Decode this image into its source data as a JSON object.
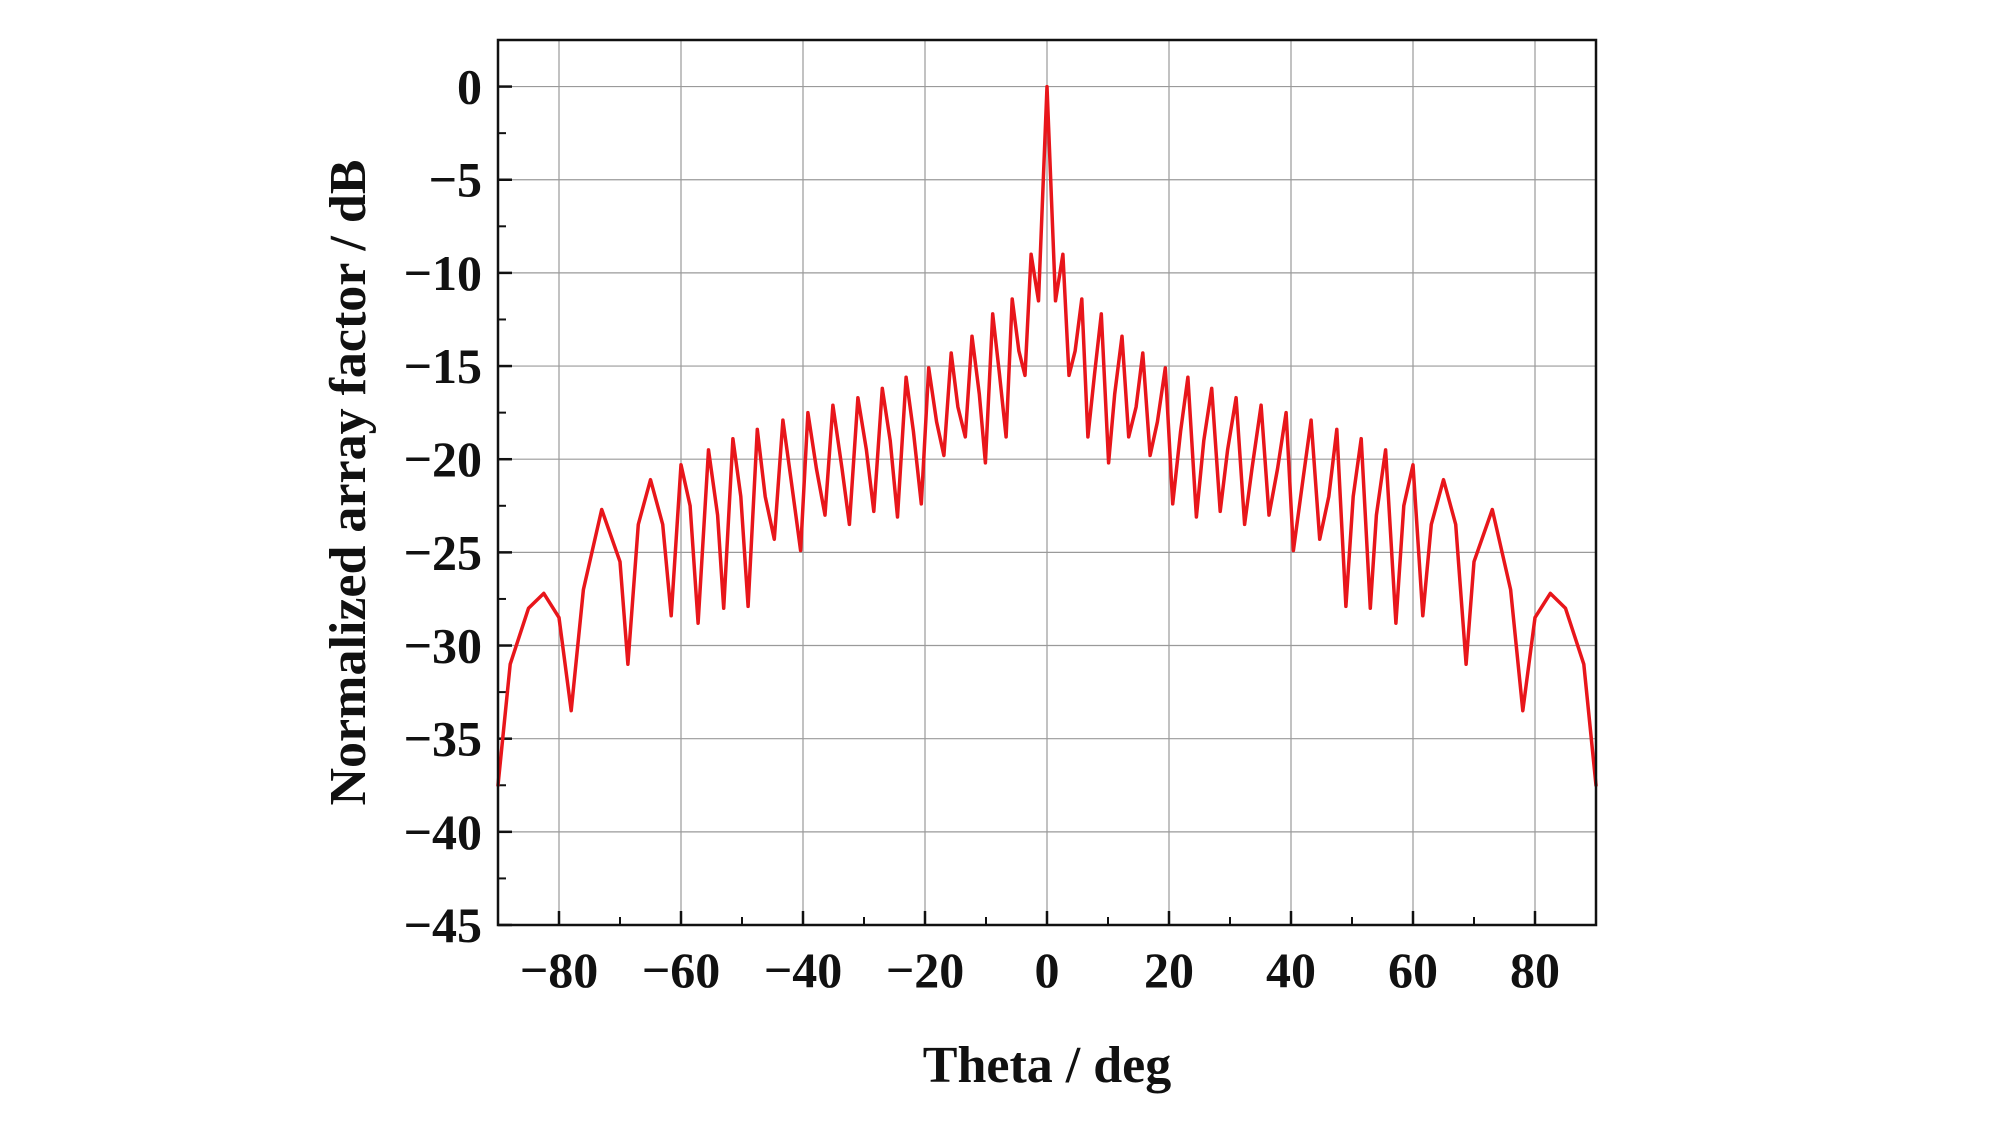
{
  "chart_data": {
    "type": "line",
    "title": "",
    "xlabel": "Theta / deg",
    "ylabel": "Normalized array factor / dB",
    "xlim": [
      -90,
      90
    ],
    "ylim": [
      -45,
      2.5
    ],
    "x_ticks": [
      -80,
      -60,
      -40,
      -20,
      0,
      20,
      40,
      60,
      80
    ],
    "x_tick_labels": [
      "−80",
      "−60",
      "−40",
      "−20",
      "0",
      "20",
      "40",
      "60",
      "80"
    ],
    "y_ticks": [
      0,
      -5,
      -10,
      -15,
      -20,
      -25,
      -30,
      -35,
      -40,
      -45
    ],
    "y_tick_labels": [
      "0",
      "−5",
      "−10",
      "−15",
      "−20",
      "−25",
      "−30",
      "−35",
      "−40",
      "−45"
    ],
    "grid": true,
    "legend": "none",
    "line_color": "#e8161b",
    "series": [
      {
        "x": [
          -90,
          -88,
          -85,
          -82.5,
          -80,
          -78,
          -76,
          -73,
          -70,
          -68.7,
          -67,
          -65,
          -63,
          -61.6,
          -60,
          -58.5,
          -57.2,
          -55.5,
          -54,
          -53,
          -51.5,
          -50.2,
          -49,
          -47.5,
          -46.2,
          -44.7,
          -43.3,
          -42,
          -40.4,
          -39.2,
          -37.8,
          -36.4,
          -35.1,
          -33.6,
          -32.4,
          -31,
          -29.6,
          -28.4,
          -27,
          -25.7,
          -24.5,
          -23.1,
          -21.9,
          -20.6,
          -19.4,
          -18.1,
          -16.9,
          -15.7,
          -14.6,
          -13.4,
          -12.3,
          -11.1,
          -10.1,
          -8.9,
          -7.8,
          -6.7,
          -5.7,
          -4.6,
          -3.6,
          -2.6,
          -1.4,
          0,
          1.4,
          2.6,
          3.6,
          4.6,
          5.7,
          6.7,
          7.8,
          8.9,
          10.1,
          11.1,
          12.3,
          13.4,
          14.6,
          15.7,
          16.9,
          18.1,
          19.4,
          20.6,
          21.9,
          23.1,
          24.5,
          25.7,
          27,
          28.4,
          29.6,
          31,
          32.4,
          33.6,
          35.1,
          36.4,
          37.8,
          39.2,
          40.4,
          42,
          43.3,
          44.7,
          46.2,
          47.5,
          49,
          50.2,
          51.5,
          53,
          54,
          55.5,
          57.2,
          58.5,
          60,
          61.6,
          63,
          65,
          67,
          68.7,
          70,
          73,
          76,
          78,
          80,
          82.5,
          85,
          88,
          90
        ],
        "y": [
          -37.5,
          -31,
          -28,
          -27.2,
          -28.5,
          -33.5,
          -27,
          -22.7,
          -25.5,
          -31,
          -23.5,
          -21.1,
          -23.5,
          -28.4,
          -20.3,
          -22.5,
          -28.8,
          -19.5,
          -23,
          -28,
          -18.9,
          -22,
          -27.9,
          -18.4,
          -22,
          -24.3,
          -17.9,
          -21,
          -24.9,
          -17.5,
          -20.5,
          -23,
          -17.1,
          -20.5,
          -23.5,
          -16.7,
          -19.5,
          -22.8,
          -16.2,
          -19,
          -23.1,
          -15.6,
          -18.5,
          -22.4,
          -15.1,
          -18,
          -19.8,
          -14.3,
          -17.2,
          -18.8,
          -13.4,
          -16.5,
          -20.2,
          -12.2,
          -15.4,
          -18.8,
          -11.4,
          -14.2,
          -15.5,
          -9,
          -11.5,
          0,
          -11.5,
          -9,
          -15.5,
          -14.2,
          -11.4,
          -18.8,
          -15.4,
          -12.2,
          -20.2,
          -16.5,
          -13.4,
          -18.8,
          -17.2,
          -14.3,
          -19.8,
          -18,
          -15.1,
          -22.4,
          -18.5,
          -15.6,
          -23.1,
          -19,
          -16.2,
          -22.8,
          -19.5,
          -16.7,
          -23.5,
          -20.5,
          -17.1,
          -23,
          -20.5,
          -17.5,
          -24.9,
          -21,
          -17.9,
          -24.3,
          -22,
          -18.4,
          -27.9,
          -22,
          -18.9,
          -28,
          -23,
          -19.5,
          -28.8,
          -22.5,
          -20.3,
          -28.4,
          -23.5,
          -21.1,
          -23.5,
          -31,
          -25.5,
          -22.7,
          -27,
          -33.5,
          -28.5,
          -27.2,
          -28,
          -31,
          -37.5
        ]
      }
    ]
  }
}
